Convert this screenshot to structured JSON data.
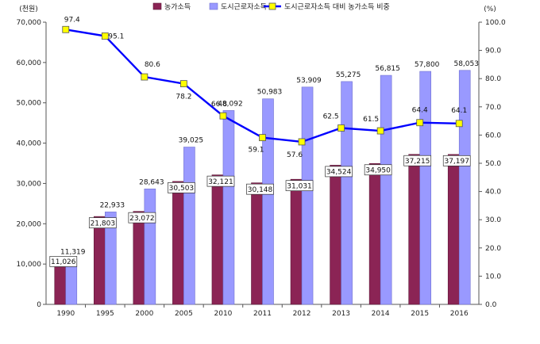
{
  "chart_data": {
    "type": "bar",
    "categories": [
      "1990",
      "1995",
      "2000",
      "2005",
      "2010",
      "2011",
      "2012",
      "2013",
      "2014",
      "2015",
      "2016"
    ],
    "series": [
      {
        "name": "농가소득",
        "axis": "left",
        "color": "#8b2455",
        "values": [
          11026,
          21803,
          23072,
          30503,
          32121,
          30148,
          31031,
          34524,
          34950,
          37215,
          37197
        ],
        "labels": [
          "11,026",
          "21,803",
          "23,072",
          "30,503",
          "32,121",
          "30,148",
          "31,031",
          "34,524",
          "34,950",
          "37,215",
          "37,197"
        ]
      },
      {
        "name": "도시근로자소득",
        "axis": "left",
        "color": "#9999ff",
        "values": [
          11319,
          22933,
          28643,
          39025,
          48092,
          50983,
          53909,
          55275,
          56815,
          57800,
          58053
        ],
        "labels": [
          "11,319",
          "22,933",
          "28,643",
          "39,025",
          "48,092",
          "50,983",
          "53,909",
          "55,275",
          "56,815",
          "57,800",
          "58,053"
        ]
      },
      {
        "name": "도시근로자소득 대비 농가소득 비중",
        "axis": "right",
        "type": "line",
        "color": "#0000ff",
        "marker_color": "#ffff00",
        "values": [
          97.4,
          95.1,
          80.6,
          78.2,
          66.8,
          59.1,
          57.6,
          62.5,
          61.5,
          64.4,
          64.1
        ],
        "labels": [
          "97.4",
          "95.1",
          "80.6",
          "78.2",
          "66.8",
          "59.1",
          "57.6",
          "62.5",
          "61.5",
          "64.4",
          "64.1"
        ]
      }
    ],
    "left_axis": {
      "unit": "(천원)",
      "ylim": [
        0,
        70000
      ],
      "ticks": [
        "0",
        "10,000",
        "20,000",
        "30,000",
        "40,000",
        "50,000",
        "60,000",
        "70,000"
      ]
    },
    "right_axis": {
      "unit": "(%)",
      "ylim": [
        0,
        100
      ],
      "ticks": [
        "0.0",
        "10.0",
        "20.0",
        "30.0",
        "40.0",
        "50.0",
        "60.0",
        "70.0",
        "80.0",
        "90.0",
        "100.0"
      ]
    },
    "legend": {
      "position": "top"
    },
    "grid": false
  }
}
